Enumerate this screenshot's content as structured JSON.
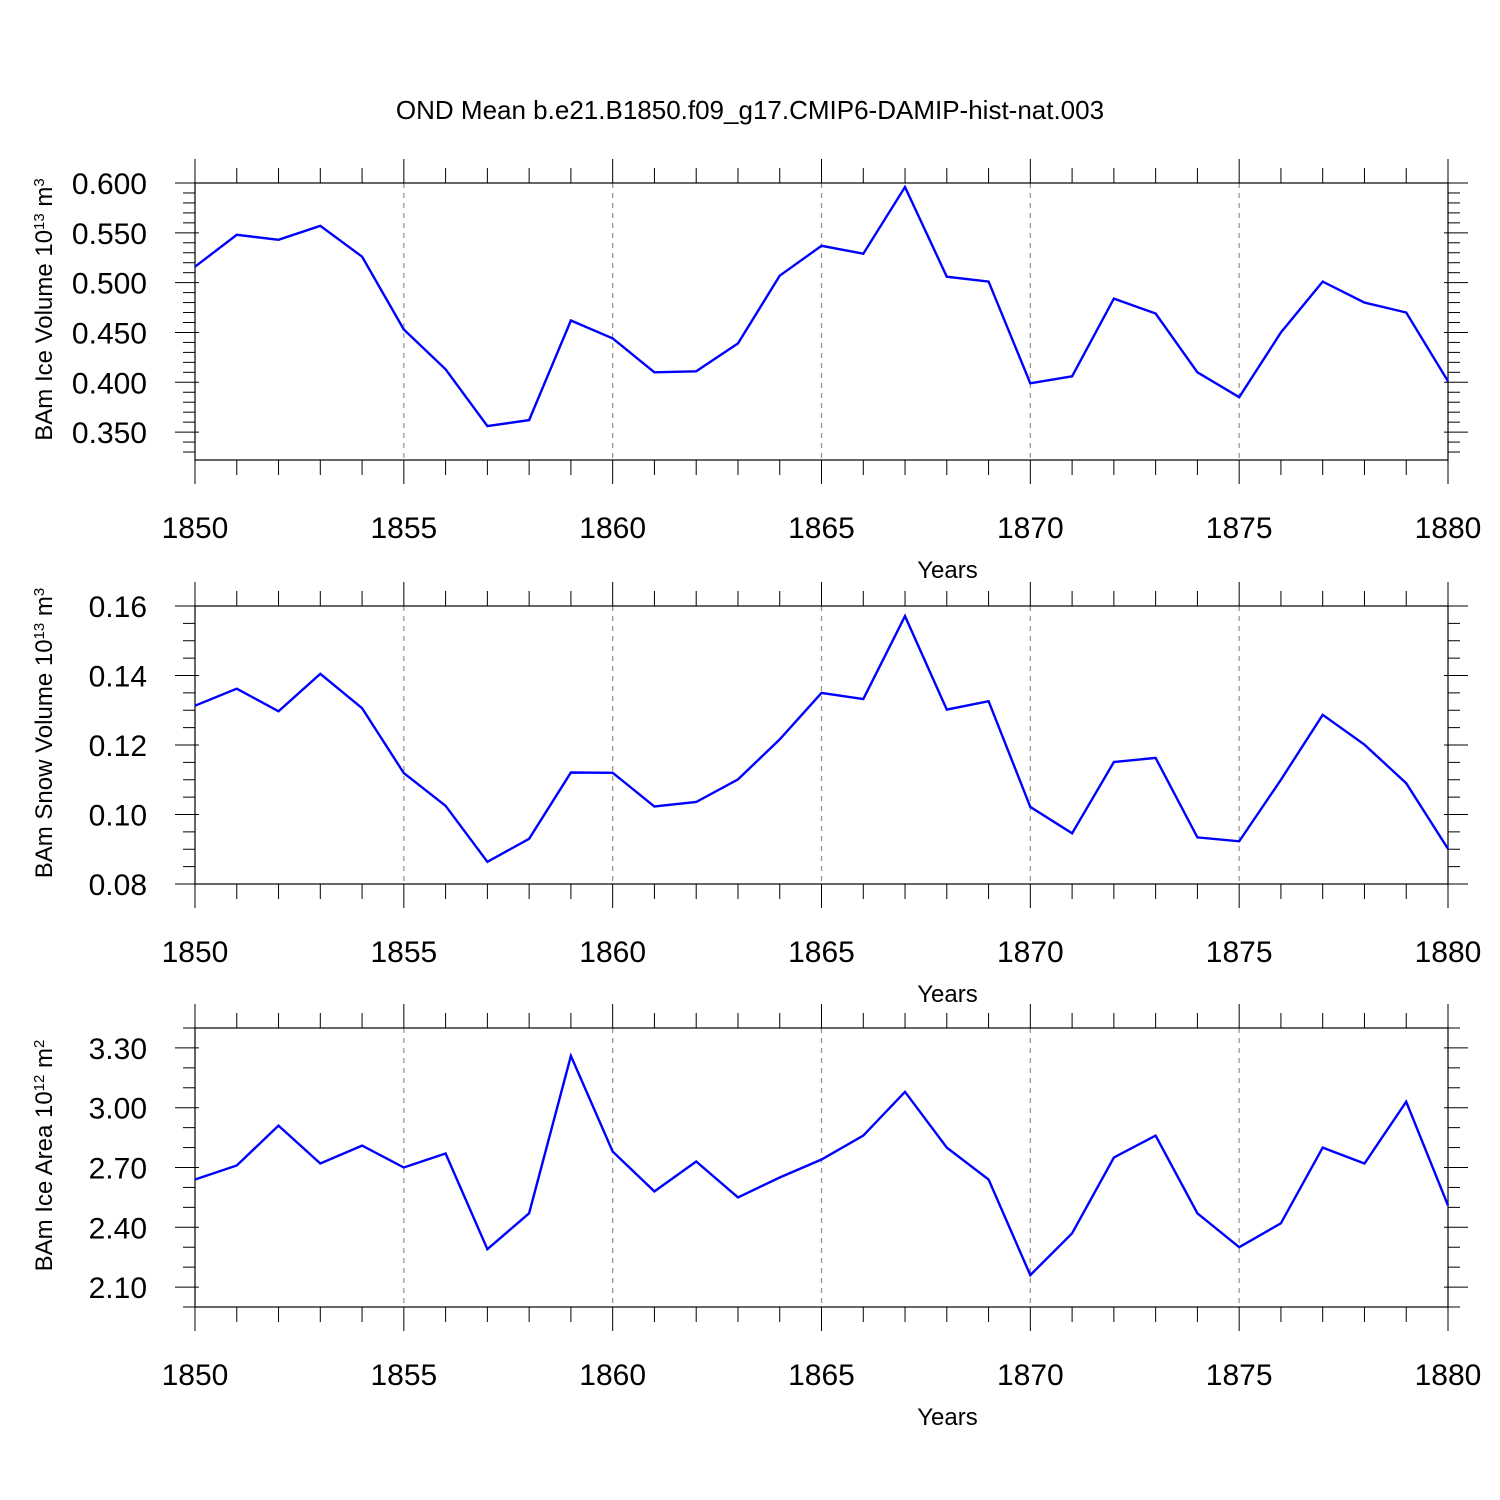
{
  "figure_title": "OND Mean b.e21.B1850.f09_g17.CMIP6-DAMIP-hist-nat.003",
  "colors": {
    "line": "#0000ff",
    "grid": "#999999",
    "axis": "#000000"
  },
  "chart_data": [
    {
      "type": "line",
      "title": "OND Mean b.e21.B1850.f09_g17.CMIP6-DAMIP-hist-nat.003",
      "xlabel": "Years",
      "ylabel": {
        "base": "BAm Ice Volume 10",
        "exp": "13",
        "unit": " m",
        "unit_exp": "3"
      },
      "xlim": [
        1850,
        1880
      ],
      "ylim": [
        0.322,
        0.6
      ],
      "xticks": [
        1850,
        1855,
        1860,
        1865,
        1870,
        1875,
        1880
      ],
      "yticks": [
        0.35,
        0.4,
        0.45,
        0.5,
        0.55,
        0.6
      ],
      "ytick_labels": [
        "0.350",
        "0.400",
        "0.450",
        "0.500",
        "0.550",
        "0.600"
      ],
      "y_minor_step": 0.01,
      "x": [
        1850,
        1851,
        1852,
        1853,
        1854,
        1855,
        1856,
        1857,
        1858,
        1859,
        1860,
        1861,
        1862,
        1863,
        1864,
        1865,
        1866,
        1867,
        1868,
        1869,
        1870,
        1871,
        1872,
        1873,
        1874,
        1875,
        1876,
        1877,
        1878,
        1879,
        1880
      ],
      "values": [
        0.516,
        0.548,
        0.543,
        0.557,
        0.526,
        0.453,
        0.413,
        0.356,
        0.362,
        0.462,
        0.444,
        0.41,
        0.411,
        0.439,
        0.507,
        0.537,
        0.529,
        0.596,
        0.506,
        0.501,
        0.399,
        0.406,
        0.484,
        0.469,
        0.41,
        0.385,
        0.45,
        0.501,
        0.48,
        0.47,
        0.401
      ]
    },
    {
      "type": "line",
      "xlabel": "Years",
      "ylabel": {
        "base": "BAm Snow Volume 10",
        "exp": "13",
        "unit": " m",
        "unit_exp": "3"
      },
      "xlim": [
        1850,
        1880
      ],
      "ylim": [
        0.08,
        0.16
      ],
      "xticks": [
        1850,
        1855,
        1860,
        1865,
        1870,
        1875,
        1880
      ],
      "yticks": [
        0.08,
        0.1,
        0.12,
        0.14,
        0.16
      ],
      "ytick_labels": [
        "0.08",
        "0.10",
        "0.12",
        "0.14",
        "0.16"
      ],
      "y_minor_step": 0.005,
      "x": [
        1850,
        1851,
        1852,
        1853,
        1854,
        1855,
        1856,
        1857,
        1858,
        1859,
        1860,
        1861,
        1862,
        1863,
        1864,
        1865,
        1866,
        1867,
        1868,
        1869,
        1870,
        1871,
        1872,
        1873,
        1874,
        1875,
        1876,
        1877,
        1878,
        1879,
        1880
      ],
      "values": [
        0.1313,
        0.1362,
        0.1297,
        0.1405,
        0.1306,
        0.1119,
        0.1025,
        0.0864,
        0.093,
        0.1121,
        0.112,
        0.1023,
        0.1036,
        0.1101,
        0.1216,
        0.135,
        0.1332,
        0.1571,
        0.1302,
        0.1326,
        0.1022,
        0.0946,
        0.1151,
        0.1163,
        0.0934,
        0.0923,
        0.11,
        0.1287,
        0.1201,
        0.109,
        0.0901
      ]
    },
    {
      "type": "line",
      "xlabel": "Years",
      "ylabel": {
        "base": "BAm Ice Area 10",
        "exp": "12",
        "unit": " m",
        "unit_exp": "2"
      },
      "xlim": [
        1850,
        1880
      ],
      "ylim": [
        2.0,
        3.4
      ],
      "xticks": [
        1850,
        1855,
        1860,
        1865,
        1870,
        1875,
        1880
      ],
      "yticks": [
        2.1,
        2.4,
        2.7,
        3.0,
        3.3
      ],
      "ytick_labels": [
        "2.10",
        "2.40",
        "2.70",
        "3.00",
        "3.30"
      ],
      "y_minor_step": 0.1,
      "x": [
        1850,
        1851,
        1852,
        1853,
        1854,
        1855,
        1856,
        1857,
        1858,
        1859,
        1860,
        1861,
        1862,
        1863,
        1864,
        1865,
        1866,
        1867,
        1868,
        1869,
        1870,
        1871,
        1872,
        1873,
        1874,
        1875,
        1876,
        1877,
        1878,
        1879,
        1880
      ],
      "values": [
        2.64,
        2.71,
        2.91,
        2.72,
        2.81,
        2.7,
        2.77,
        2.29,
        2.47,
        3.26,
        2.78,
        2.58,
        2.73,
        2.55,
        2.65,
        2.74,
        2.86,
        3.08,
        2.8,
        2.64,
        2.16,
        2.37,
        2.75,
        2.86,
        2.47,
        2.3,
        2.42,
        2.8,
        2.72,
        3.03,
        2.51
      ]
    }
  ]
}
